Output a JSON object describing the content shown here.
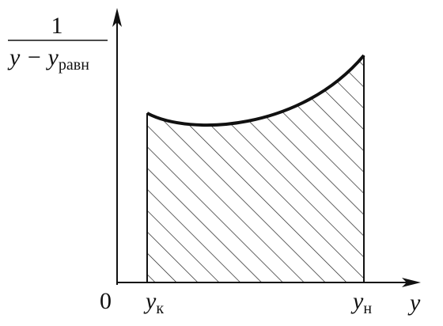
{
  "y_axis_label": {
    "numerator": "1",
    "denominator": "y − y",
    "denominator_subscript": "равн"
  },
  "origin": "0",
  "x_axis_label": "y",
  "bounds": [
    {
      "symbol": "y",
      "subscript": "к"
    },
    {
      "symbol": "y",
      "subscript": "н"
    }
  ]
}
